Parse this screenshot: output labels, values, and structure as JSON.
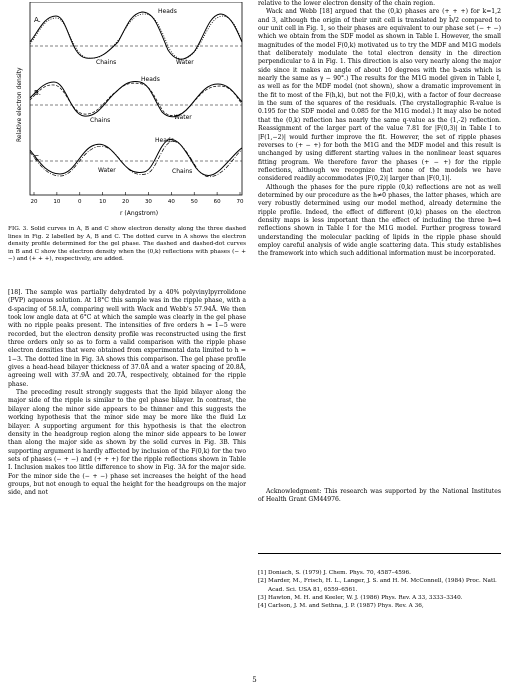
{
  "figure": {
    "panels": [
      {
        "letter": "A.",
        "labels": [
          "Heads",
          "Chains",
          "Water"
        ]
      },
      {
        "letter": "B.",
        "labels": [
          "Heads",
          "Chains",
          "Water"
        ]
      },
      {
        "letter": "C.",
        "labels": [
          "Heads",
          "Water",
          "Chains"
        ]
      }
    ],
    "ylabel": "Relative electron density",
    "xlabel": "r (Angstrom)",
    "xticks": [
      "20",
      "10",
      "0",
      "10",
      "20",
      "30",
      "40",
      "50",
      "60",
      "70"
    ]
  },
  "caption": "FIG. 3. Solid curves in A, B and C show electron density along the three dashed lines in Fig. 2 labelled by A, B and C. The dotted curve in A shows the electron density profile determined for the gel phase. The dashed and dashed-dot curves in B and C show the electron density when the (0,k) reflections with phases (− + −) and (+ + +), respectively, are added.",
  "left_paragraphs": [
    "[18]. The sample was partially dehydrated by a 40% polyvinylpyrrolidone (PVP) aqueous solution. At 18°C this sample was in the ripple phase, with a d-spacing of 58.1Å, comparing well with Wack and Webb's 57.94Å. We then took low angle data at 6°C at which the sample was clearly in the gel phase with no ripple peaks present. The intensities of five orders h = 1−5 were recorded, but the electron density profile was reconstructed using the first three orders only so as to form a valid comparison with the ripple phase electron densities that were obtained from experimental data limited to h = 1−3. The dotted line in Fig. 3A shows this comparison. The gel phase profile gives a head-head bilayer thickness of 37.0Å and a water spacing of 20.8Å, agreeing well with 37.9Å and 20.7Å, respectively, obtained for the ripple phase.",
    "The preceding result strongly suggests that the lipid bilayer along the major side of the ripple is similar to the gel phase bilayer. In contrast, the bilayer along the minor side appears to be thinner and this suggests the working hypothesis that the minor side may be more like the fluid Lα bilayer. A supporting argument for this hypothesis is that the electron density in the headgroup region along the minor side appears to be lower than along the major side as shown by the solid curves in Fig. 3B. This supporting argument is hardly affected by inclusion of the F(0,k) for the two sets of phases (− + −) and (+ + +) for the ripple reflections shown in Table I. Inclusion makes too little difference to show in Fig. 3A for the major side. For the minor side the (− + −) phase set increases the height of the head groups, but not enough to equal the height for the headgroups on the major side, and not"
  ],
  "right_top_line": "relative to the lower electron density of the chain region.",
  "right_paragraphs": [
    "Wack and Webb [18] argued that the (0,k) phases are (+ + +) for k=1,2 and 3, although the origin of their unit cell is translated by b̄/2 compared to our unit cell in Fig. 1, so their phases are equivalent to our phase set (− + −) which we obtain from the SDF model as shown in Table I. However, the small magnitudes of the model F(0,k) motivated us to try the MDF and M1G models that deliberately modulate the total electron density in the direction perpendicular to ā in Fig. 1. This direction is also very nearly along the major side since it makes an angle of about 10 degrees with the b-axis which is nearly the same as γ − 90°.) The results for the M1G model given in Table I, as well as for the MDF model (not shown), show a dramatic improvement in the fit to most of the F(h,k), but not the F(0,k), with a factor of four decrease in the sum of the squares of the residuals. (The crystallographic R-value is 0.195 for the SDF model and 0.085 for the M1G model.) It may also be noted that the (0,k) reflection has nearly the same q-value as the (1,-2) reflection. Reassignment of the larger part of the value 7.81 for |F(0,3)| in Table I to |F(1,−2)| would further improve the fit. However, the set of ripple phases reverses to (+ − +) for both the M1G and the MDF model and this result is unchanged by using different starting values in the nonlinear least squares fitting program. We therefore favor the phases (+ − +) for the ripple reflections, although we recognize that none of the models we have considered readily accommodates |F(0,2)| larger than |F(0,1)|.",
    "Although the phases for the pure ripple (0,k) reflections are not as well determined by our procedure as the h≠0 phases, the latter phases, which are very robustly determined using our model method, already determine the ripple profile. Indeed, the effect of different (0,k) phases on the electron density maps is less important than the effect of including the three h=4 reflections shown in Table I for the M1G model. Further progress toward understanding the molecular packing of lipids in the ripple phase should employ careful analysis of wide angle scattering data. This study establishes the framework into which such additional information must be incorporated."
  ],
  "acknowledgment": "Acknowledgment: This research was supported by the National Institutes of Health Grant GM44976.",
  "references": [
    {
      "num": "[1]",
      "text": "Doniach, S. (1979) J. Chem. Phys. 70, 4587–4596."
    },
    {
      "num": "[2]",
      "text": "Marder, M., Frisch, H. L., Langer, J. S. and H. M. McConnell, (1984) Proc. Natl. Acad. Sci. USA 81, 6559–6561."
    },
    {
      "num": "[3]",
      "text": "Hawton, M. H. and Keeler, W. J. (1986) Phys. Rev. A 33, 3333–3340."
    },
    {
      "num": "[4]",
      "text": "Carlson, J. M. and Sethna, J. P. (1987) Phys. Rev. A 36,"
    }
  ],
  "page_number": "5"
}
